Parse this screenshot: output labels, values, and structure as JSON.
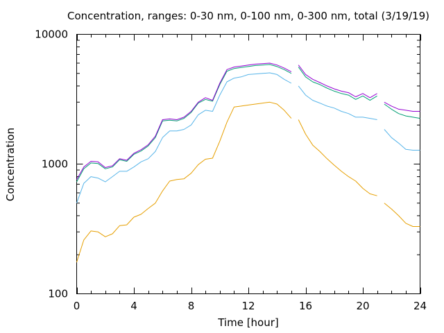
{
  "chart_data": {
    "type": "line",
    "title": "Concentration, ranges: 0-30 nm, 0-100 nm, 0-300 nm, total (3/19/19)",
    "xlabel": "Time [hour]",
    "ylabel": "Concentration",
    "xlim": [
      0,
      24
    ],
    "ylim": [
      100,
      10000
    ],
    "yscale": "log",
    "xticks": [
      0,
      4,
      8,
      12,
      16,
      20,
      24
    ],
    "yticks": [
      100,
      1000,
      10000
    ],
    "ytick_labels": [
      "100",
      "1000",
      "10000"
    ],
    "grid": false,
    "series": [
      {
        "color": "#e69f00",
        "x": [
          0,
          0.5,
          1,
          1.5,
          2,
          2.5,
          3,
          3.5,
          4,
          4.5,
          5,
          5.5,
          6,
          6.5,
          7,
          7.5,
          8,
          8.5,
          9,
          9.5,
          10,
          10.5,
          11,
          11.5,
          12,
          12.5,
          13,
          13.5,
          14,
          14.5,
          15,
          15.2,
          15.5,
          16,
          16.5,
          17,
          17.5,
          18,
          18.5,
          19,
          19.5,
          20,
          20.5,
          21,
          21.2,
          21.5,
          22,
          22.5,
          23,
          23.5,
          24
        ],
        "y": [
          175,
          260,
          305,
          300,
          275,
          290,
          335,
          340,
          390,
          410,
          455,
          500,
          620,
          740,
          760,
          770,
          850,
          990,
          1090,
          1110,
          1500,
          2100,
          2750,
          2800,
          2850,
          2900,
          2950,
          3000,
          2900,
          2600,
          2250,
          null,
          2200,
          1700,
          1400,
          1250,
          1100,
          980,
          880,
          800,
          740,
          650,
          590,
          570,
          null,
          500,
          450,
          400,
          350,
          330,
          330
        ]
      },
      {
        "color": "#56b4e9",
        "x": [
          0,
          0.5,
          1,
          1.5,
          2,
          2.5,
          3,
          3.5,
          4,
          4.5,
          5,
          5.5,
          6,
          6.5,
          7,
          7.5,
          8,
          8.5,
          9,
          9.5,
          10,
          10.5,
          11,
          11.5,
          12,
          12.5,
          13,
          13.5,
          14,
          14.5,
          15,
          15.2,
          15.5,
          16,
          16.5,
          17,
          17.5,
          18,
          18.5,
          19,
          19.5,
          20,
          20.5,
          21,
          21.2,
          21.5,
          22,
          22.5,
          23,
          23.5,
          24
        ],
        "y": [
          500,
          710,
          800,
          780,
          730,
          800,
          880,
          880,
          950,
          1040,
          1100,
          1250,
          1600,
          1800,
          1800,
          1850,
          2000,
          2400,
          2600,
          2550,
          3400,
          4300,
          4600,
          4700,
          4900,
          4950,
          5000,
          5050,
          4900,
          4500,
          4200,
          null,
          4000,
          3400,
          3100,
          2950,
          2800,
          2700,
          2550,
          2450,
          2300,
          2300,
          2250,
          2200,
          null,
          1850,
          1600,
          1450,
          1300,
          1280,
          1280
        ]
      },
      {
        "color": "#009e73",
        "x": [
          0,
          0.5,
          1,
          1.5,
          2,
          2.5,
          3,
          3.5,
          4,
          4.5,
          5,
          5.5,
          6,
          6.5,
          7,
          7.5,
          8,
          8.5,
          9,
          9.5,
          10,
          10.5,
          11,
          11.5,
          12,
          12.5,
          13,
          13.5,
          14,
          14.5,
          15,
          15.2,
          15.5,
          16,
          16.5,
          17,
          17.5,
          18,
          18.5,
          19,
          19.5,
          20,
          20.5,
          21,
          21.2,
          21.5,
          22,
          22.5,
          23,
          23.5,
          24
        ],
        "y": [
          730,
          920,
          1020,
          1010,
          920,
          950,
          1080,
          1050,
          1190,
          1260,
          1380,
          1600,
          2150,
          2180,
          2150,
          2250,
          2500,
          2950,
          3150,
          3050,
          4100,
          5200,
          5450,
          5550,
          5650,
          5750,
          5800,
          5850,
          5650,
          5350,
          5000,
          null,
          5600,
          4700,
          4300,
          4100,
          3850,
          3650,
          3500,
          3400,
          3150,
          3350,
          3100,
          3350,
          null,
          2900,
          2650,
          2450,
          2350,
          2300,
          2250
        ]
      },
      {
        "color": "#9400d3",
        "x": [
          0,
          0.5,
          1,
          1.5,
          2,
          2.5,
          3,
          3.5,
          4,
          4.5,
          5,
          5.5,
          6,
          6.5,
          7,
          7.5,
          8,
          8.5,
          9,
          9.5,
          10,
          10.5,
          11,
          11.5,
          12,
          12.5,
          13,
          13.5,
          14,
          14.5,
          15,
          15.2,
          15.5,
          16,
          16.5,
          17,
          17.5,
          18,
          18.5,
          19,
          19.5,
          20,
          20.5,
          21,
          21.2,
          21.5,
          22,
          22.5,
          23,
          23.5,
          24
        ],
        "y": [
          760,
          950,
          1050,
          1040,
          940,
          970,
          1100,
          1070,
          1210,
          1290,
          1410,
          1640,
          2200,
          2230,
          2200,
          2300,
          2550,
          3000,
          3250,
          3100,
          4200,
          5350,
          5600,
          5700,
          5800,
          5900,
          5950,
          6000,
          5800,
          5500,
          5150,
          null,
          5800,
          4900,
          4500,
          4250,
          4000,
          3800,
          3650,
          3550,
          3300,
          3500,
          3250,
          3500,
          null,
          3000,
          2800,
          2650,
          2600,
          2550,
          2550
        ]
      }
    ]
  }
}
